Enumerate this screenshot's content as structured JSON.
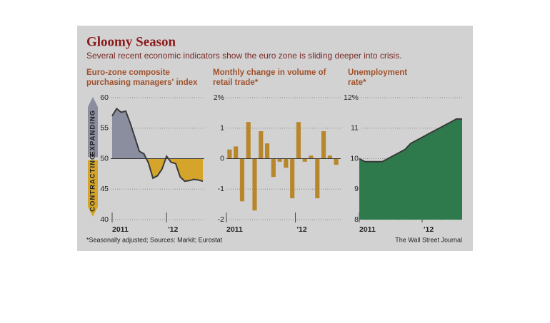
{
  "title": "Gloomy Season",
  "subtitle": "Several recent economic indicators show the euro zone is sliding deeper into crisis.",
  "footnote": "*Seasonally adjusted; Sources: Markit; Eurostat",
  "source": "The Wall Street Journal",
  "chart_data": [
    {
      "type": "area_split",
      "title": [
        "Euro-zone composite",
        "purchasing managers' index"
      ],
      "categories": [
        "2011",
        null,
        null,
        null,
        null,
        null,
        null,
        null,
        null,
        null,
        null,
        null,
        "'12",
        null,
        null,
        null,
        null,
        null,
        null,
        null,
        null
      ],
      "values": [
        57,
        58.2,
        57.6,
        57.8,
        55.8,
        53.5,
        51.2,
        50.8,
        49.3,
        46.8,
        47.2,
        48.3,
        50.4,
        49.4,
        49.2,
        47,
        46.3,
        46.4,
        46.6,
        46.5,
        46.3
      ],
      "threshold": 50,
      "color_above": "#8a8e9e",
      "color_below": "#d4a52a",
      "line_color": "#3a3a3a",
      "annotations": [
        "EXPANDING",
        "CONTRACTING"
      ],
      "ylim": [
        40,
        60
      ],
      "yticks": [
        40,
        45,
        50,
        55,
        60
      ],
      "grid": true
    },
    {
      "type": "bar",
      "title": [
        "Monthly change in volume of",
        "retail trade*"
      ],
      "categories": [
        "2011",
        null,
        null,
        null,
        null,
        null,
        null,
        null,
        null,
        null,
        null,
        "'12",
        null,
        null,
        null,
        null,
        null,
        null
      ],
      "values": [
        0.3,
        0.4,
        -1.4,
        1.2,
        -1.7,
        0.9,
        0.5,
        -0.6,
        -0.1,
        -0.3,
        -1.3,
        1.2,
        -0.1,
        0.1,
        -1.3,
        0.9,
        0.1,
        -0.2
      ],
      "color": "#b8862b",
      "ylim": [
        -2,
        2
      ],
      "yticks": [
        -2,
        -1,
        0,
        1,
        {
          "value": 2,
          "label": "2%"
        }
      ],
      "grid": true
    },
    {
      "type": "area",
      "title": [
        "Unemployment",
        "rate*"
      ],
      "categories": [
        "2011",
        null,
        null,
        null,
        null,
        null,
        null,
        null,
        null,
        null,
        null,
        "'12",
        null,
        null,
        null,
        null,
        null,
        null,
        null
      ],
      "values": [
        10,
        9.9,
        9.9,
        9.9,
        9.9,
        10.0,
        10.1,
        10.2,
        10.3,
        10.5,
        10.6,
        10.7,
        10.8,
        10.9,
        11.0,
        11.1,
        11.2,
        11.3,
        11.3
      ],
      "color": "#2e7a4c",
      "line_color": "#3a3a3a",
      "ylim": [
        8,
        12
      ],
      "yticks": [
        8,
        9,
        10,
        11,
        {
          "value": 12,
          "label": "12%"
        }
      ],
      "grid": true
    }
  ]
}
